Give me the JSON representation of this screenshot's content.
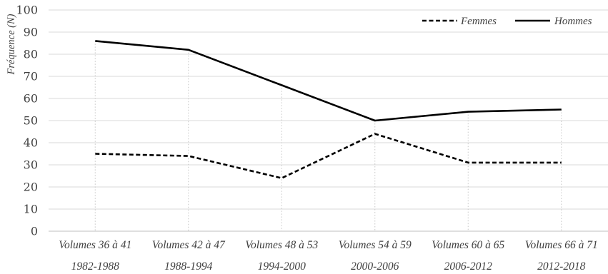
{
  "chart_data": {
    "type": "line",
    "ylabel": "Fréquence (N)",
    "xlabel": "",
    "ylim": [
      0,
      100
    ],
    "yticks": [
      0,
      10,
      20,
      30,
      40,
      50,
      60,
      70,
      80,
      90,
      100
    ],
    "categories": [
      {
        "volumes": "Volumes 36 à 41",
        "years": "1982-1988"
      },
      {
        "volumes": "Volumes 42 à 47",
        "years": "1988-1994"
      },
      {
        "volumes": "Volumes 48 à 53",
        "years": "1994-2000"
      },
      {
        "volumes": "Volumes 54 à 59",
        "years": "2000-2006"
      },
      {
        "volumes": "Volumes 60 à 65",
        "years": "2006-2012"
      },
      {
        "volumes": "Volumes 66 à 71",
        "years": "2012-2018"
      }
    ],
    "series": [
      {
        "name": "Femmes",
        "style": "dashed",
        "color": "#000000",
        "values": [
          35,
          34,
          24,
          44,
          31,
          31
        ]
      },
      {
        "name": "Hommes",
        "style": "solid",
        "color": "#000000",
        "values": [
          86,
          82,
          66,
          50,
          54,
          55
        ]
      }
    ],
    "grid": true,
    "legend_position": "top-right"
  }
}
